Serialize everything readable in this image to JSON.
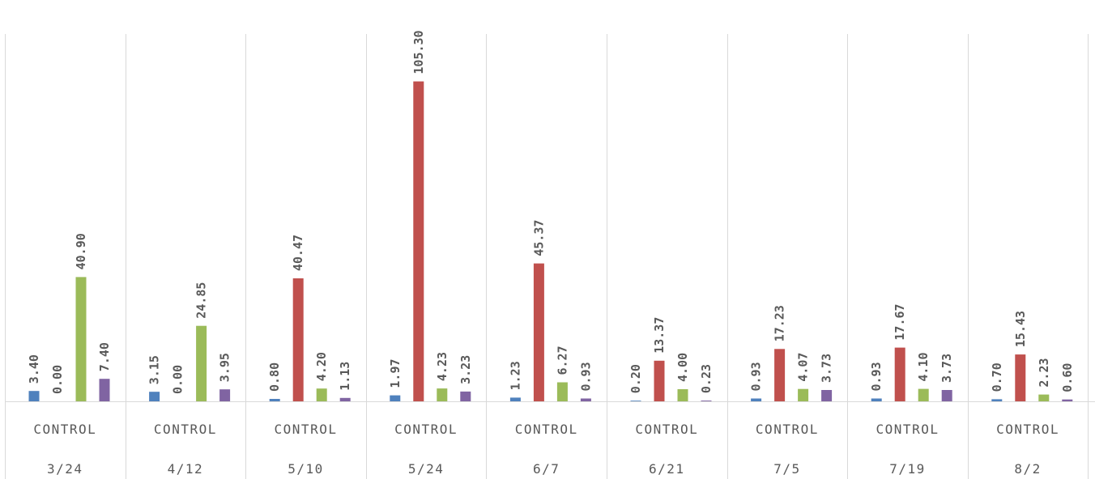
{
  "chart_data": {
    "type": "bar",
    "title": "",
    "xlabel": "",
    "ylabel": "",
    "ylim": [
      0,
      110
    ],
    "grid": false,
    "legend": "none",
    "x_group_label": "CONTROL",
    "categories": [
      "3/24",
      "4/12",
      "5/10",
      "5/24",
      "6/7",
      "6/21",
      "7/5",
      "7/19",
      "8/2"
    ],
    "series": [
      {
        "color": "#4f81bd",
        "values": [
          3.4,
          3.15,
          0.8,
          1.97,
          1.23,
          0.2,
          0.93,
          0.93,
          0.7
        ],
        "labels": [
          "3.40",
          "3.15",
          "0.80",
          "1.97",
          "1.23",
          "0.20",
          "0.93",
          "0.93",
          "0.70"
        ]
      },
      {
        "color": "#c0504d",
        "values": [
          0.0,
          0.0,
          40.47,
          105.3,
          45.37,
          13.37,
          17.23,
          17.67,
          15.43
        ],
        "labels": [
          "0.00",
          "0.00",
          "40.47",
          "105.30",
          "45.37",
          "13.37",
          "17.23",
          "17.67",
          "15.43"
        ]
      },
      {
        "color": "#9bbb59",
        "values": [
          40.9,
          24.85,
          4.2,
          4.23,
          6.27,
          4.0,
          4.07,
          4.1,
          2.23
        ],
        "labels": [
          "40.90",
          "24.85",
          "4.20",
          "4.23",
          "6.27",
          "4.00",
          "4.07",
          "4.10",
          "2.23"
        ]
      },
      {
        "color": "#8064a2",
        "values": [
          7.4,
          3.95,
          1.13,
          3.23,
          0.93,
          0.23,
          3.73,
          3.73,
          0.6
        ],
        "labels": [
          "7.40",
          "3.95",
          "1.13",
          "3.23",
          "0.93",
          "0.23",
          "3.73",
          "3.73",
          "0.60"
        ]
      }
    ]
  }
}
